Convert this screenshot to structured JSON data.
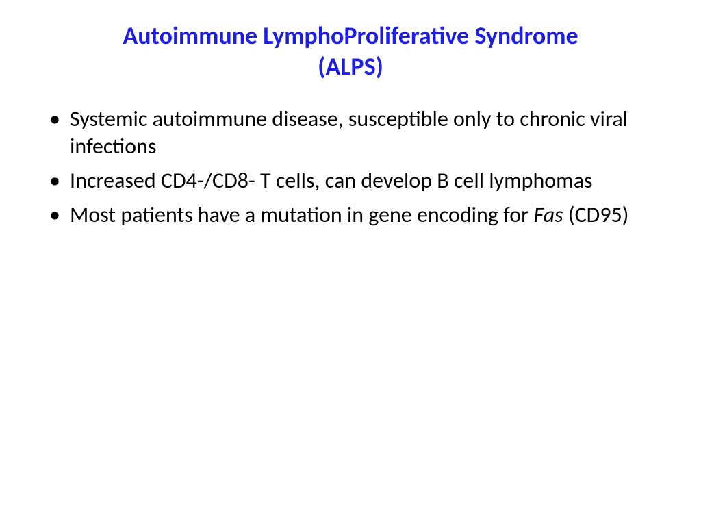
{
  "title": {
    "line1": "Autoimmune LymphoProliferative Syndrome",
    "line2": "(ALPS)",
    "color": "#1d1de6",
    "fontsize": 36
  },
  "body": {
    "fontsize": 32,
    "color": "#000000",
    "bullets": [
      {
        "text": "Systemic autoimmune disease, susceptible only to chronic viral infections"
      },
      {
        "text": "Increased CD4-/CD8- T cells, can develop B cell lymphomas"
      },
      {
        "prefix": "Most patients have a mutation in gene encoding for ",
        "italic": "Fas",
        "suffix": " (CD95)"
      }
    ]
  },
  "background_color": "#ffffff"
}
